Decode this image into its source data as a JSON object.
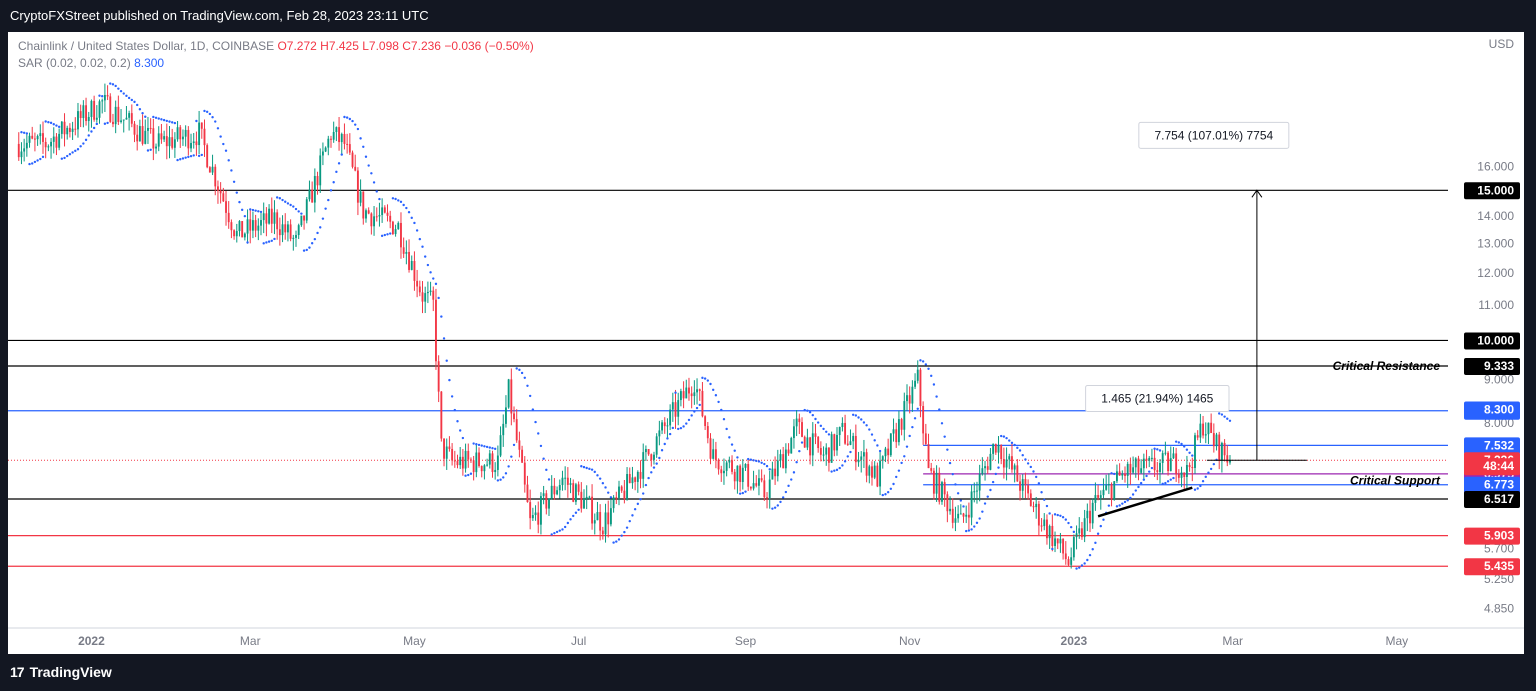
{
  "header": {
    "publisher": "CryptoFXStreet published on TradingView.com, Feb 28, 2023 23:11 UTC"
  },
  "footer": {
    "brand": "TradingView",
    "logo_glyph": "17"
  },
  "legend": {
    "symbol": "Chainlink / United States Dollar, 1D, COINBASE",
    "o": "O7.272",
    "h": "H7.425",
    "l": "L7.098",
    "c": "C7.236",
    "change": "−0.036 (−0.50%)",
    "sar_label": "SAR (0.02, 0.02, 0.2)",
    "sar_value": "8.300"
  },
  "colors": {
    "up": "#089981",
    "down": "#f23645",
    "sar": "#2962ff",
    "blue_level": "#2962ff",
    "red_level": "#f23645",
    "black_level": "#000000",
    "purple": "#9c27b0"
  },
  "chart_data": {
    "type": "candlestick",
    "currency": "USD",
    "y_scale": "log",
    "ylim": [
      4.6,
      23.0
    ],
    "x_range": [
      "2021-12-01",
      "2023-05-20"
    ],
    "x_ticks": [
      {
        "date": "2022-01-01",
        "label": "2022"
      },
      {
        "date": "2022-03-01",
        "label": "Mar"
      },
      {
        "date": "2022-05-01",
        "label": "May"
      },
      {
        "date": "2022-07-01",
        "label": "Jul"
      },
      {
        "date": "2022-09-01",
        "label": "Sep"
      },
      {
        "date": "2022-11-01",
        "label": "Nov"
      },
      {
        "date": "2023-01-01",
        "label": "2023"
      },
      {
        "date": "2023-03-01",
        "label": "Mar"
      },
      {
        "date": "2023-05-01",
        "label": "May"
      }
    ],
    "y_ticks": [
      {
        "value": 16.0,
        "label": "16.000"
      },
      {
        "value": 14.0,
        "label": "14.000"
      },
      {
        "value": 13.0,
        "label": "13.000"
      },
      {
        "value": 12.0,
        "label": "12.000"
      },
      {
        "value": 11.0,
        "label": "11.000"
      },
      {
        "value": 9.0,
        "label": "9.000"
      },
      {
        "value": 8.0,
        "label": "8.000"
      },
      {
        "value": 5.7,
        "label": "5.700"
      },
      {
        "value": 5.25,
        "label": "5.250"
      },
      {
        "value": 4.85,
        "label": "4.850"
      }
    ],
    "anchors": [
      {
        "date": "2021-12-15",
        "price": 17.0
      },
      {
        "date": "2022-01-05",
        "price": 19.0
      },
      {
        "date": "2022-01-25",
        "price": 17.0
      },
      {
        "date": "2022-02-10",
        "price": 17.5
      },
      {
        "date": "2022-02-24",
        "price": 13.3
      },
      {
        "date": "2022-03-10",
        "price": 13.9
      },
      {
        "date": "2022-03-18",
        "price": 13.0
      },
      {
        "date": "2022-03-31",
        "price": 17.5
      },
      {
        "date": "2022-04-05",
        "price": 17.0
      },
      {
        "date": "2022-04-12",
        "price": 14.2
      },
      {
        "date": "2022-04-25",
        "price": 13.6
      },
      {
        "date": "2022-05-04",
        "price": 11.3
      },
      {
        "date": "2022-05-08",
        "price": 11.0
      },
      {
        "date": "2022-05-11",
        "price": 7.5
      },
      {
        "date": "2022-05-15",
        "price": 7.2
      },
      {
        "date": "2022-06-01",
        "price": 7.2
      },
      {
        "date": "2022-06-05",
        "price": 8.7
      },
      {
        "date": "2022-06-13",
        "price": 6.1
      },
      {
        "date": "2022-06-25",
        "price": 6.9
      },
      {
        "date": "2022-07-10",
        "price": 6.1
      },
      {
        "date": "2022-07-25",
        "price": 7.2
      },
      {
        "date": "2022-08-13",
        "price": 9.0
      },
      {
        "date": "2022-08-20",
        "price": 7.3
      },
      {
        "date": "2022-08-31",
        "price": 7.0
      },
      {
        "date": "2022-09-08",
        "price": 6.6
      },
      {
        "date": "2022-09-20",
        "price": 7.9
      },
      {
        "date": "2022-09-30",
        "price": 7.3
      },
      {
        "date": "2022-10-07",
        "price": 7.8
      },
      {
        "date": "2022-10-20",
        "price": 6.9
      },
      {
        "date": "2022-11-04",
        "price": 9.0
      },
      {
        "date": "2022-11-08",
        "price": 7.0
      },
      {
        "date": "2022-11-20",
        "price": 6.1
      },
      {
        "date": "2022-12-03",
        "price": 7.6
      },
      {
        "date": "2022-12-18",
        "price": 6.3
      },
      {
        "date": "2022-12-30",
        "price": 5.5
      },
      {
        "date": "2023-01-08",
        "price": 6.4
      },
      {
        "date": "2023-01-20",
        "price": 7.0
      },
      {
        "date": "2023-02-08",
        "price": 7.2
      },
      {
        "date": "2023-02-12",
        "price": 7.0
      },
      {
        "date": "2023-02-18",
        "price": 8.0
      },
      {
        "date": "2023-02-22",
        "price": 7.6
      },
      {
        "date": "2023-02-28",
        "price": 7.236
      }
    ],
    "horizontal_levels": [
      {
        "value": 15.0,
        "label": "15.000",
        "color": "#000000",
        "from": "2021-12-01"
      },
      {
        "value": 10.0,
        "label": "10.000",
        "color": "#000000",
        "from": "2021-12-01"
      },
      {
        "value": 9.333,
        "label": "9.333",
        "color": "#000000",
        "from": "2021-12-01"
      },
      {
        "value": 8.271,
        "label": "8.271",
        "color": "#2962ff",
        "from": "2021-12-01"
      },
      {
        "value": 7.532,
        "label": "7.532",
        "color": "#2962ff",
        "from": "2022-11-06"
      },
      {
        "value": 6.975,
        "label": "6.975",
        "color": "#9c27b0",
        "from": "2022-11-06"
      },
      {
        "value": 6.773,
        "label": "6.773",
        "color": "#2962ff",
        "from": "2022-11-06"
      },
      {
        "value": 6.517,
        "label": "6.517",
        "color": "#000000",
        "from": "2021-12-01"
      },
      {
        "value": 5.903,
        "label": "5.903",
        "color": "#f23645",
        "from": "2021-12-01"
      },
      {
        "value": 5.435,
        "label": "5.435",
        "color": "#f23645",
        "from": "2021-12-01"
      }
    ],
    "price_tags": [
      {
        "value": 8.3,
        "label": "8.300",
        "color": "#2962ff"
      },
      {
        "value": 7.236,
        "label": "7.236",
        "color": "#f23645"
      },
      {
        "value": 7.12,
        "label": "48:44",
        "color": "#f23645"
      }
    ],
    "current_price": 7.236,
    "annotations": [
      {
        "text": "Critical Resistance",
        "value": 9.333
      },
      {
        "text": "Critical Support",
        "value": 6.85
      }
    ],
    "measure_boxes": [
      {
        "text": "7.754 (107.01%) 7754",
        "date": "2023-02-22",
        "value": 17.4
      },
      {
        "text": "1.465 (21.94%) 1465",
        "date": "2023-02-01",
        "value": 8.55
      }
    ],
    "trendline": {
      "from": {
        "date": "2023-01-10",
        "price": 6.22
      },
      "to": {
        "date": "2023-02-14",
        "price": 6.72
      }
    },
    "target_arrow": {
      "date": "2023-03-10",
      "from": 7.236,
      "to": 15.0
    }
  }
}
